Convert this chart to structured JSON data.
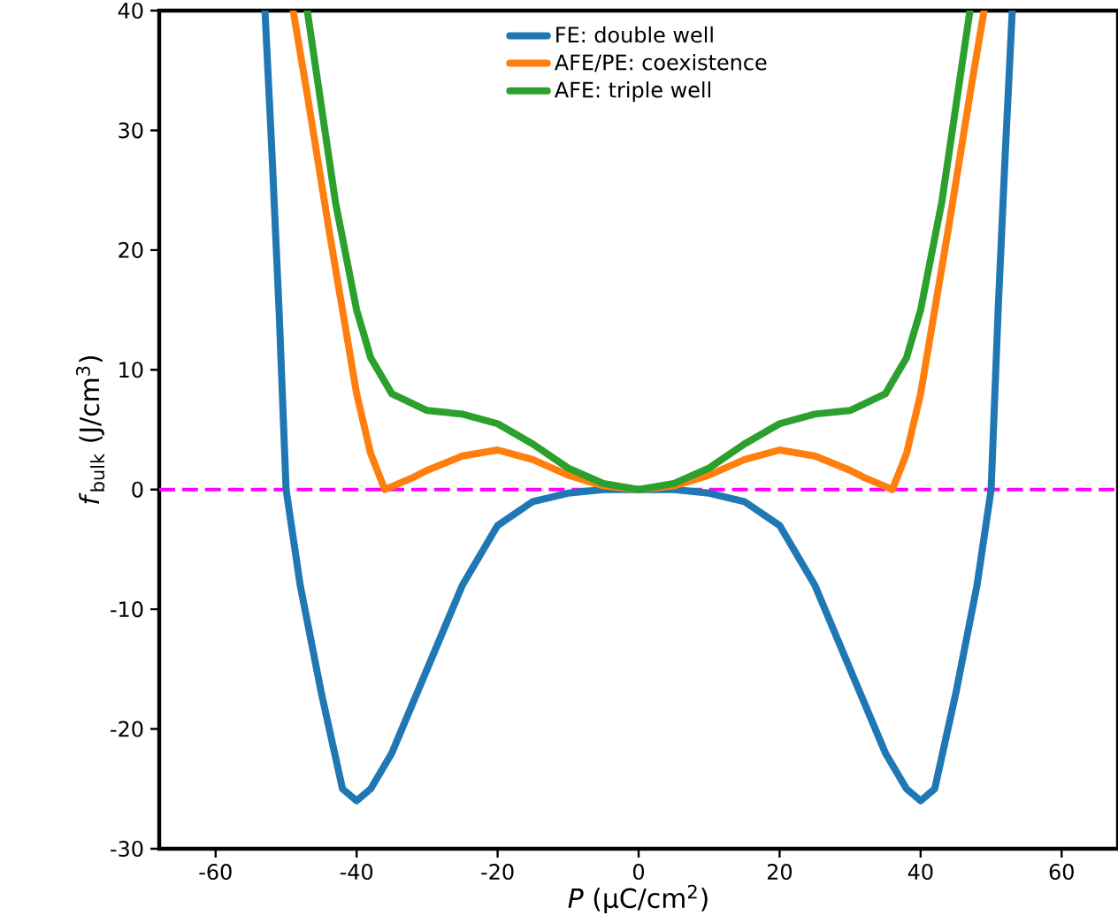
{
  "chart_data": {
    "type": "line",
    "xlabel": "*P* (μC/cm$^{2}$)",
    "ylabel": "*f*$_{bulk}$ (J/cm$^{3}$)",
    "xlim": [
      -68,
      68
    ],
    "ylim": [
      -30,
      40
    ],
    "xticks": [
      -60,
      -40,
      -20,
      0,
      20,
      40,
      60
    ],
    "yticks": [
      -30,
      -20,
      -10,
      0,
      10,
      20,
      30,
      40
    ],
    "grid": false,
    "legend": "top",
    "marker": "none",
    "line_style": "solid",
    "ref_lines": [
      {
        "axis": "y",
        "value": 0,
        "color": "#ff00ff",
        "line_style": "dashed"
      }
    ],
    "series": [
      {
        "name": "FE: double well",
        "color": "#1f77b4",
        "x": [
          -53,
          -52,
          -51,
          -50,
          -48,
          -45,
          -42,
          -40,
          -38,
          -35,
          -30,
          -25,
          -20,
          -15,
          -10,
          -5,
          0,
          5,
          10,
          15,
          20,
          25,
          30,
          35,
          38,
          40,
          42,
          45,
          48,
          50,
          51,
          52,
          53
        ],
        "values": [
          40,
          28,
          15,
          0,
          -8,
          -17,
          -25,
          -26,
          -25,
          -22,
          -15,
          -8,
          -3,
          -1,
          -0.3,
          0,
          0,
          0,
          -0.3,
          -1,
          -3,
          -8,
          -15,
          -22,
          -25,
          -26,
          -25,
          -17,
          -8,
          0,
          15,
          28,
          40
        ]
      },
      {
        "name": "AFE/PE: coexistence",
        "color": "#ff7f0e",
        "x": [
          -49,
          -47,
          -44,
          -42,
          -40,
          -38,
          -36,
          -34,
          -32,
          -30,
          -25,
          -20,
          -15,
          -10,
          -5,
          0,
          5,
          10,
          15,
          20,
          25,
          30,
          32,
          34,
          36,
          38,
          40,
          42,
          44,
          47,
          49
        ],
        "values": [
          40,
          33,
          22,
          15,
          8,
          3,
          0,
          0.5,
          1,
          1.6,
          2.8,
          3.3,
          2.5,
          1.2,
          0.3,
          0,
          0.3,
          1.2,
          2.5,
          3.3,
          2.8,
          1.6,
          1,
          0.5,
          0,
          3,
          8,
          15,
          22,
          33,
          40
        ]
      },
      {
        "name": "AFE: triple well",
        "color": "#2ca02c",
        "x": [
          -47,
          -45,
          -43,
          -40,
          -38,
          -35,
          -30,
          -25,
          -20,
          -15,
          -10,
          -5,
          0,
          5,
          10,
          15,
          20,
          25,
          30,
          35,
          38,
          40,
          43,
          45,
          47
        ],
        "values": [
          40,
          32,
          24,
          15,
          11,
          8,
          6.6,
          6.3,
          5.5,
          3.8,
          1.8,
          0.5,
          0,
          0.5,
          1.8,
          3.8,
          5.5,
          6.3,
          6.6,
          8,
          11,
          15,
          24,
          32,
          40
        ]
      }
    ]
  }
}
